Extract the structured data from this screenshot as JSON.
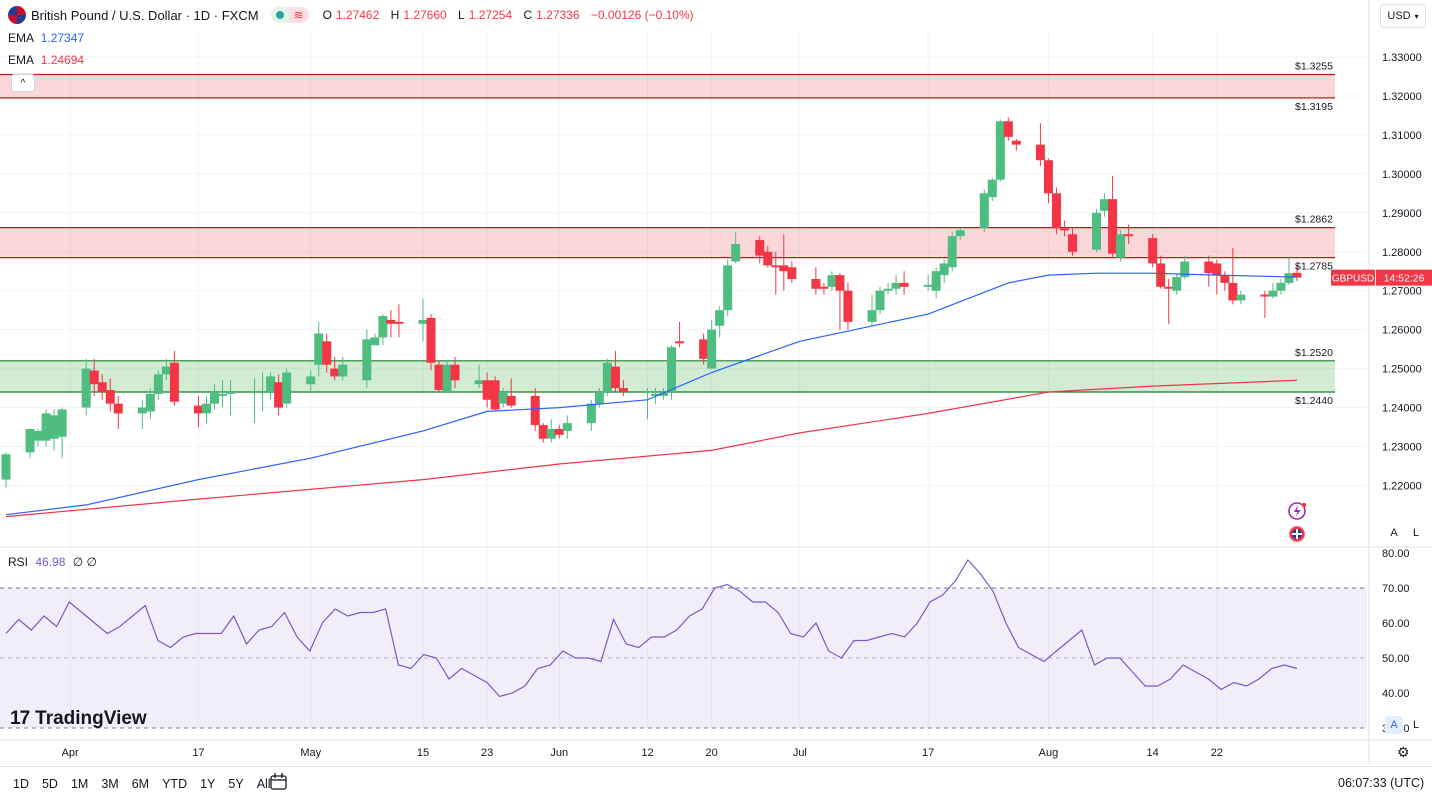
{
  "header": {
    "symbol_title": "British Pound / U.S. Dollar · 1D · FXCM",
    "ohlc": [
      {
        "label": "O",
        "value": "1.27462"
      },
      {
        "label": "H",
        "value": "1.27660"
      },
      {
        "label": "L",
        "value": "1.27254"
      },
      {
        "label": "C",
        "value": "1.27336"
      }
    ],
    "change": "−0.00126 (−0.10%)",
    "wave_glyph": "≋"
  },
  "indicators": {
    "ema1_label": "EMA",
    "ema1_value": "1.27347",
    "ema1_color": "#2962ff",
    "ema2_label": "EMA",
    "ema2_value": "1.24694",
    "ema2_color": "#f23645",
    "rsi_label": "RSI",
    "rsi_value": "46.98",
    "rsi_extra": "∅ ∅",
    "rsi_color": "#7e57c2"
  },
  "currency_button": "USD",
  "collapse_glyph": "^",
  "price_tag": {
    "symbol": "GBPUSD",
    "countdown": "14:52:26"
  },
  "scale_buttons": {
    "auto": "A",
    "log": "L"
  },
  "logo": {
    "mark": "17",
    "text": "TradingView"
  },
  "timeframes": [
    "1D",
    "5D",
    "1M",
    "3M",
    "6M",
    "YTD",
    "1Y",
    "5Y",
    "All"
  ],
  "clock": "06:07:33 (UTC)",
  "icons": [
    "flag-icon",
    "collapse-chevron-icon",
    "flash-icon",
    "gbp-flag-icon",
    "calendar-compare-icon",
    "gear-icon"
  ],
  "colors": {
    "up": "#26a69a",
    "up_fill": "#4fbc80",
    "down": "#f23645",
    "resistance": "#f23645",
    "support": "#26a69a"
  },
  "chart_data": [
    {
      "type": "candlestick",
      "title": "British Pound / U.S. Dollar · 1D · FXCM",
      "ylim": [
        1.21,
        1.335
      ],
      "yticks": [
        "1.33000",
        "1.32000",
        "1.31000",
        "1.30000",
        "1.29000",
        "1.28000",
        "1.27000",
        "1.26000",
        "1.25000",
        "1.24000",
        "1.23000",
        "1.22000"
      ],
      "x_ticks": [
        {
          "label": "Apr",
          "date": "2023-04-01"
        },
        {
          "label": "17",
          "date": "2023-04-17"
        },
        {
          "label": "May",
          "date": "2023-05-01"
        },
        {
          "label": "15",
          "date": "2023-05-15"
        },
        {
          "label": "23",
          "date": "2023-05-23"
        },
        {
          "label": "Jun",
          "date": "2023-06-01"
        },
        {
          "label": "12",
          "date": "2023-06-12"
        },
        {
          "label": "20",
          "date": "2023-06-20"
        },
        {
          "label": "Jul",
          "date": "2023-07-01"
        },
        {
          "label": "17",
          "date": "2023-07-17"
        },
        {
          "label": "Aug",
          "date": "2023-08-01"
        },
        {
          "label": "14",
          "date": "2023-08-14"
        },
        {
          "label": "22",
          "date": "2023-08-22"
        }
      ],
      "zones": [
        {
          "kind": "resistance",
          "top": 1.3255,
          "bottom": 1.3195,
          "top_label": "1.3255",
          "bottom_label": "1.3195"
        },
        {
          "kind": "resistance",
          "top": 1.2862,
          "bottom": 1.2785,
          "top_label": "1.2862",
          "bottom_label": "1.2785"
        },
        {
          "kind": "support",
          "top": 1.252,
          "bottom": 1.244,
          "top_label": "1.2520",
          "bottom_label": "1.2440"
        }
      ],
      "last_price": 1.27336,
      "candles": [
        [
          "2023-03-24",
          1.2215,
          1.228,
          1.2195,
          1.2285
        ],
        [
          "2023-03-27",
          1.2285,
          1.2345,
          1.227,
          1.234
        ],
        [
          "2023-03-28",
          1.2315,
          1.234,
          1.23,
          1.2345
        ],
        [
          "2023-03-29",
          1.2315,
          1.2385,
          1.23,
          1.2395
        ],
        [
          "2023-03-30",
          1.232,
          1.238,
          1.229,
          1.2395
        ],
        [
          "2023-03-31",
          1.2325,
          1.2395,
          1.227,
          1.24
        ],
        [
          "2023-04-03",
          1.24,
          1.25,
          1.238,
          1.2525
        ],
        [
          "2023-04-04",
          1.2495,
          1.246,
          1.243,
          1.2525
        ],
        [
          "2023-04-05",
          1.2465,
          1.244,
          1.242,
          1.2485
        ],
        [
          "2023-04-06",
          1.2445,
          1.241,
          1.239,
          1.2475
        ],
        [
          "2023-04-07",
          1.241,
          1.2385,
          1.2345,
          1.243
        ],
        [
          "2023-04-10",
          1.2385,
          1.24,
          1.2345,
          1.242
        ],
        [
          "2023-04-11",
          1.239,
          1.2435,
          1.237,
          1.245
        ],
        [
          "2023-04-12",
          1.2435,
          1.2485,
          1.242,
          1.2495
        ],
        [
          "2023-04-13",
          1.2485,
          1.2505,
          1.247,
          1.2525
        ],
        [
          "2023-04-14",
          1.2515,
          1.2415,
          1.2405,
          1.2545
        ],
        [
          "2023-04-17",
          1.2405,
          1.2385,
          1.235,
          1.243
        ],
        [
          "2023-04-18",
          1.2385,
          1.241,
          1.236,
          1.243
        ],
        [
          "2023-04-19",
          1.241,
          1.244,
          1.2395,
          1.246
        ],
        [
          "2023-04-20",
          1.243,
          1.2435,
          1.24,
          1.247
        ],
        [
          "2023-04-21",
          1.2435,
          1.244,
          1.238,
          1.247
        ],
        [
          "2023-04-24",
          1.244,
          1.244,
          1.236,
          1.2475
        ],
        [
          "2023-04-25",
          1.244,
          1.244,
          1.239,
          1.249
        ],
        [
          "2023-04-26",
          1.244,
          1.248,
          1.242,
          1.249
        ],
        [
          "2023-04-27",
          1.2465,
          1.24,
          1.238,
          1.2485
        ],
        [
          "2023-04-28",
          1.241,
          1.249,
          1.24,
          1.25
        ],
        [
          "2023-05-01",
          1.246,
          1.248,
          1.244,
          1.2495
        ],
        [
          "2023-05-02",
          1.251,
          1.259,
          1.248,
          1.262
        ],
        [
          "2023-05-03",
          1.257,
          1.251,
          1.249,
          1.259
        ],
        [
          "2023-05-04",
          1.25,
          1.248,
          1.247,
          1.253
        ],
        [
          "2023-05-05",
          1.248,
          1.251,
          1.247,
          1.253
        ],
        [
          "2023-05-08",
          1.247,
          1.2575,
          1.245,
          1.26
        ],
        [
          "2023-05-09",
          1.256,
          1.258,
          1.256,
          1.259
        ],
        [
          "2023-05-10",
          1.258,
          1.2635,
          1.256,
          1.264
        ],
        [
          "2023-05-11",
          1.2625,
          1.2615,
          1.258,
          1.265
        ],
        [
          "2023-05-12",
          1.262,
          1.2615,
          1.258,
          1.2665
        ],
        [
          "2023-05-15",
          1.2615,
          1.2625,
          1.257,
          1.268
        ],
        [
          "2023-05-16",
          1.263,
          1.2515,
          1.2495,
          1.264
        ],
        [
          "2023-05-17",
          1.251,
          1.2445,
          1.244,
          1.252
        ],
        [
          "2023-05-18",
          1.244,
          1.251,
          1.244,
          1.252
        ],
        [
          "2023-05-19",
          1.251,
          1.247,
          1.245,
          1.253
        ],
        [
          "2023-05-22",
          1.246,
          1.247,
          1.245,
          1.251
        ],
        [
          "2023-05-23",
          1.247,
          1.242,
          1.24,
          1.249
        ],
        [
          "2023-05-24",
          1.247,
          1.2395,
          1.239,
          1.248
        ],
        [
          "2023-05-25",
          1.241,
          1.244,
          1.24,
          1.245
        ],
        [
          "2023-05-26",
          1.243,
          1.2405,
          1.24,
          1.2475
        ],
        [
          "2023-05-29",
          1.243,
          1.2355,
          1.234,
          1.245
        ],
        [
          "2023-05-30",
          1.2355,
          1.232,
          1.231,
          1.236
        ],
        [
          "2023-05-31",
          1.232,
          1.2345,
          1.231,
          1.237
        ],
        [
          "2023-06-01",
          1.2345,
          1.233,
          1.232,
          1.2355
        ],
        [
          "2023-06-02",
          1.234,
          1.236,
          1.232,
          1.238
        ],
        [
          "2023-06-05",
          1.236,
          1.241,
          1.234,
          1.242
        ],
        [
          "2023-06-06",
          1.241,
          1.244,
          1.24,
          1.245
        ],
        [
          "2023-06-07",
          1.244,
          1.2515,
          1.243,
          1.2525
        ],
        [
          "2023-06-08",
          1.2505,
          1.245,
          1.244,
          1.2545
        ],
        [
          "2023-06-09",
          1.245,
          1.244,
          1.243,
          1.247
        ],
        [
          "2023-06-12",
          1.244,
          1.244,
          1.237,
          1.245
        ],
        [
          "2023-06-13",
          1.243,
          1.2435,
          1.241,
          1.245
        ],
        [
          "2023-06-14",
          1.243,
          1.244,
          1.242,
          1.245
        ],
        [
          "2023-06-15",
          1.244,
          1.2555,
          1.242,
          1.256
        ],
        [
          "2023-06-16",
          1.257,
          1.2565,
          1.2555,
          1.262
        ],
        [
          "2023-06-19",
          1.2575,
          1.2525,
          1.251,
          1.259
        ],
        [
          "2023-06-20",
          1.25,
          1.26,
          1.25,
          1.2625
        ],
        [
          "2023-06-21",
          1.261,
          1.265,
          1.258,
          1.266
        ],
        [
          "2023-06-22",
          1.265,
          1.2765,
          1.2635,
          1.278
        ],
        [
          "2023-06-23",
          1.2775,
          1.282,
          1.277,
          1.285
        ],
        [
          "2023-06-26",
          1.283,
          1.279,
          1.277,
          1.284
        ],
        [
          "2023-06-27",
          1.28,
          1.2765,
          1.276,
          1.2815
        ],
        [
          "2023-06-28",
          1.2765,
          1.276,
          1.269,
          1.28
        ],
        [
          "2023-06-29",
          1.2765,
          1.275,
          1.27,
          1.2845
        ],
        [
          "2023-06-30",
          1.276,
          1.273,
          1.272,
          1.2775
        ],
        [
          "2023-07-03",
          1.273,
          1.2705,
          1.269,
          1.276
        ],
        [
          "2023-07-04",
          1.271,
          1.2705,
          1.269,
          1.272
        ],
        [
          "2023-07-05",
          1.271,
          1.274,
          1.27,
          1.275
        ],
        [
          "2023-07-06",
          1.274,
          1.27,
          1.26,
          1.2745
        ],
        [
          "2023-07-07",
          1.27,
          1.262,
          1.26,
          1.272
        ],
        [
          "2023-07-10",
          1.262,
          1.265,
          1.261,
          1.269
        ],
        [
          "2023-07-11",
          1.265,
          1.27,
          1.264,
          1.271
        ],
        [
          "2023-07-12",
          1.27,
          1.2705,
          1.269,
          1.272
        ],
        [
          "2023-07-13",
          1.2705,
          1.272,
          1.269,
          1.274
        ],
        [
          "2023-07-14",
          1.272,
          1.271,
          1.269,
          1.275
        ],
        [
          "2023-07-17",
          1.271,
          1.2715,
          1.27,
          1.274
        ],
        [
          "2023-07-18",
          1.27,
          1.275,
          1.268,
          1.276
        ],
        [
          "2023-07-19",
          1.274,
          1.277,
          1.272,
          1.278
        ],
        [
          "2023-07-20",
          1.276,
          1.284,
          1.275,
          1.285
        ],
        [
          "2023-07-21",
          1.284,
          1.2855,
          1.283,
          1.286
        ],
        [
          "2023-07-24",
          1.286,
          1.295,
          1.285,
          1.296
        ],
        [
          "2023-07-25",
          1.294,
          1.2985,
          1.293,
          1.299
        ],
        [
          "2023-07-26",
          1.2985,
          1.3135,
          1.298,
          1.314
        ],
        [
          "2023-07-27",
          1.3135,
          1.3095,
          1.3085,
          1.3145
        ],
        [
          "2023-07-28",
          1.3085,
          1.3075,
          1.306,
          1.309
        ],
        [
          "2023-07-31",
          1.3075,
          1.3035,
          1.302,
          1.313
        ],
        [
          "2023-08-01",
          1.3035,
          1.295,
          1.2925,
          1.304
        ],
        [
          "2023-08-02",
          1.295,
          1.286,
          1.2845,
          1.2965
        ],
        [
          "2023-08-03",
          1.286,
          1.2855,
          1.284,
          1.288
        ],
        [
          "2023-08-04",
          1.2845,
          1.28,
          1.279,
          1.286
        ],
        [
          "2023-08-07",
          1.2805,
          1.29,
          1.28,
          1.291
        ],
        [
          "2023-08-08",
          1.2905,
          1.2935,
          1.289,
          1.295
        ],
        [
          "2023-08-09",
          1.2935,
          1.2795,
          1.2785,
          1.2995
        ],
        [
          "2023-08-10",
          1.2785,
          1.2845,
          1.2775,
          1.2855
        ],
        [
          "2023-08-11",
          1.2845,
          1.284,
          1.282,
          1.287
        ],
        [
          "2023-08-14",
          1.2835,
          1.277,
          1.276,
          1.2845
        ],
        [
          "2023-08-15",
          1.277,
          1.271,
          1.2705,
          1.279
        ],
        [
          "2023-08-16",
          1.271,
          1.2705,
          1.2615,
          1.273
        ],
        [
          "2023-08-17",
          1.27,
          1.2735,
          1.269,
          1.2745
        ],
        [
          "2023-08-18",
          1.2735,
          1.2775,
          1.273,
          1.279
        ],
        [
          "2023-08-21",
          1.2775,
          1.2745,
          1.271,
          1.279
        ],
        [
          "2023-08-22",
          1.277,
          1.274,
          1.269,
          1.278
        ],
        [
          "2023-08-23",
          1.274,
          1.272,
          1.27,
          1.275
        ],
        [
          "2023-08-24",
          1.272,
          1.2675,
          1.2665,
          1.281
        ],
        [
          "2023-08-25",
          1.2675,
          1.269,
          1.2665,
          1.27
        ],
        [
          "2023-08-28",
          1.269,
          1.2685,
          1.263,
          1.27
        ],
        [
          "2023-08-29",
          1.2685,
          1.27,
          1.268,
          1.272
        ],
        [
          "2023-08-30",
          1.27,
          1.272,
          1.269,
          1.273
        ],
        [
          "2023-08-31",
          1.272,
          1.2745,
          1.2715,
          1.2785
        ],
        [
          "2023-09-01",
          1.2746,
          1.2734,
          1.2725,
          1.2766
        ]
      ],
      "ema_fast": [
        [
          "2023-03-24",
          1.2125
        ],
        [
          "2023-04-03",
          1.215
        ],
        [
          "2023-04-17",
          1.2215
        ],
        [
          "2023-05-01",
          1.227
        ],
        [
          "2023-05-15",
          1.234
        ],
        [
          "2023-05-23",
          1.239
        ],
        [
          "2023-06-01",
          1.24
        ],
        [
          "2023-06-12",
          1.242
        ],
        [
          "2023-06-20",
          1.249
        ],
        [
          "2023-07-01",
          1.257
        ],
        [
          "2023-07-17",
          1.264
        ],
        [
          "2023-07-27",
          1.272
        ],
        [
          "2023-08-01",
          1.274
        ],
        [
          "2023-08-07",
          1.2745
        ],
        [
          "2023-08-14",
          1.2745
        ],
        [
          "2023-08-22",
          1.274
        ],
        [
          "2023-09-01",
          1.2735
        ]
      ],
      "ema_slow": [
        [
          "2023-03-24",
          1.212
        ],
        [
          "2023-04-17",
          1.2165
        ],
        [
          "2023-05-15",
          1.2215
        ],
        [
          "2023-06-01",
          1.2255
        ],
        [
          "2023-06-20",
          1.229
        ],
        [
          "2023-07-01",
          1.2335
        ],
        [
          "2023-07-17",
          1.2385
        ],
        [
          "2023-08-01",
          1.244
        ],
        [
          "2023-08-14",
          1.2455
        ],
        [
          "2023-09-01",
          1.247
        ]
      ]
    },
    {
      "type": "line",
      "title": "RSI",
      "ylim": [
        28,
        82
      ],
      "yticks": [
        "80.00",
        "70.00",
        "60.00",
        "50.00",
        "40.00",
        "30.00"
      ],
      "band": [
        30,
        70
      ],
      "midline": 50,
      "values": [
        57,
        61,
        58,
        62,
        59,
        66,
        63,
        60,
        57,
        59,
        62,
        65,
        55,
        53,
        56,
        57,
        57,
        57,
        62,
        54,
        58,
        59,
        63,
        56,
        52,
        60,
        64,
        62,
        63,
        63,
        64,
        48,
        47,
        51,
        50,
        44,
        47,
        45,
        43,
        39,
        40,
        42,
        47,
        48,
        52,
        50,
        50,
        49,
        61,
        54,
        53,
        56,
        56,
        58,
        62,
        64,
        70,
        71,
        69,
        66,
        66,
        63,
        57,
        56,
        60,
        52,
        50,
        55,
        55,
        56,
        57,
        56,
        60,
        66,
        68,
        72,
        78,
        74,
        69,
        60,
        53,
        51,
        49,
        52,
        55,
        58,
        48,
        50,
        50,
        46,
        42,
        42,
        44,
        48,
        46,
        44,
        41,
        43,
        42,
        44,
        47,
        48,
        47
      ]
    }
  ]
}
